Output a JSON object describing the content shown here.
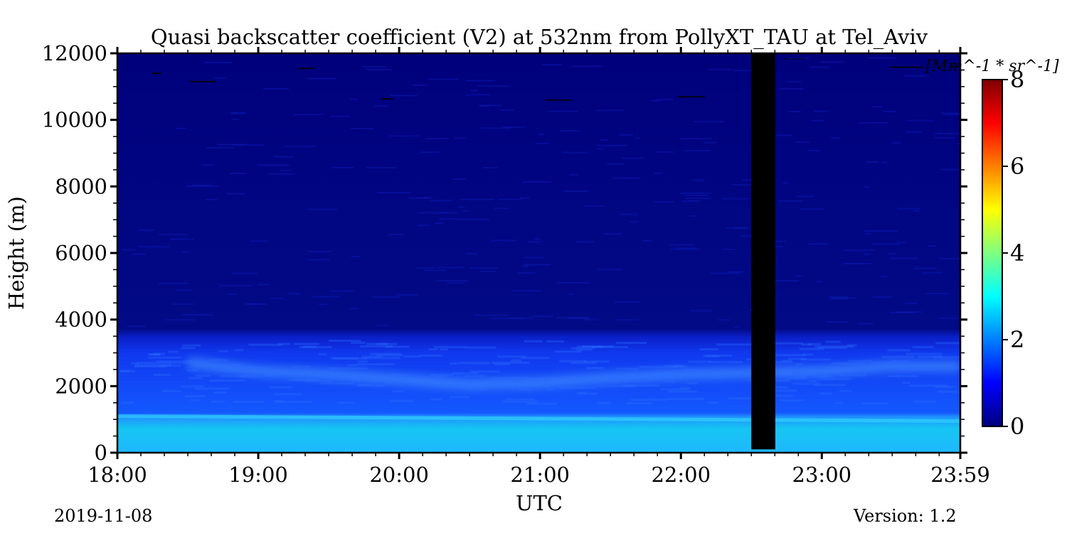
{
  "chart_data": {
    "type": "heatmap",
    "title": "Quasi backscatter coefficient (V2) at 532nm from PollyXT_TAU at Tel_Aviv",
    "xlabel": "UTC",
    "ylabel": "Height (m)",
    "x_ticks": [
      "18:00",
      "19:00",
      "20:00",
      "21:00",
      "22:00",
      "23:00",
      "23:59"
    ],
    "x_range_hours": [
      18.0,
      23.983
    ],
    "y_ticks": [
      "0",
      "2000",
      "4000",
      "6000",
      "8000",
      "10000",
      "12000"
    ],
    "y_range": [
      0,
      12000
    ],
    "colorbar": {
      "label": "[Mm^-1 * sr^-1]",
      "range": [
        0,
        8
      ],
      "ticks": [
        "0",
        "2",
        "4",
        "6",
        "8"
      ],
      "colormap": [
        "#00007f",
        "#0000ff",
        "#007fff",
        "#00ffff",
        "#7fff7f",
        "#ffff00",
        "#ff7f00",
        "#ff0000",
        "#7f0000"
      ]
    },
    "no_data_interval_hours": [
      22.5,
      22.67
    ],
    "layers": [
      {
        "layer": "near-surface aerosol",
        "top_m_start": 1300,
        "top_m_end": 1200,
        "value": 2.5
      },
      {
        "layer": "elevated aerosol layer",
        "top_m": 3500,
        "value": 1.0
      },
      {
        "layer": "free troposphere",
        "value": 0.1
      }
    ],
    "elevated_layer_peak_height_m": [
      {
        "time_h": 18.5,
        "height_m": 2700
      },
      {
        "time_h": 19.0,
        "height_m": 2450
      },
      {
        "time_h": 19.5,
        "height_m": 2350
      },
      {
        "time_h": 20.0,
        "height_m": 2200
      },
      {
        "time_h": 20.5,
        "height_m": 2050
      },
      {
        "time_h": 21.0,
        "height_m": 2100
      },
      {
        "time_h": 21.5,
        "height_m": 2250
      },
      {
        "time_h": 22.0,
        "height_m": 2350
      },
      {
        "time_h": 23.0,
        "height_m": 2450
      },
      {
        "time_h": 23.5,
        "height_m": 2600
      },
      {
        "time_h": 23.98,
        "height_m": 2600
      }
    ]
  },
  "footer": {
    "date": "2019-11-08",
    "version": "Version: 1.2"
  }
}
